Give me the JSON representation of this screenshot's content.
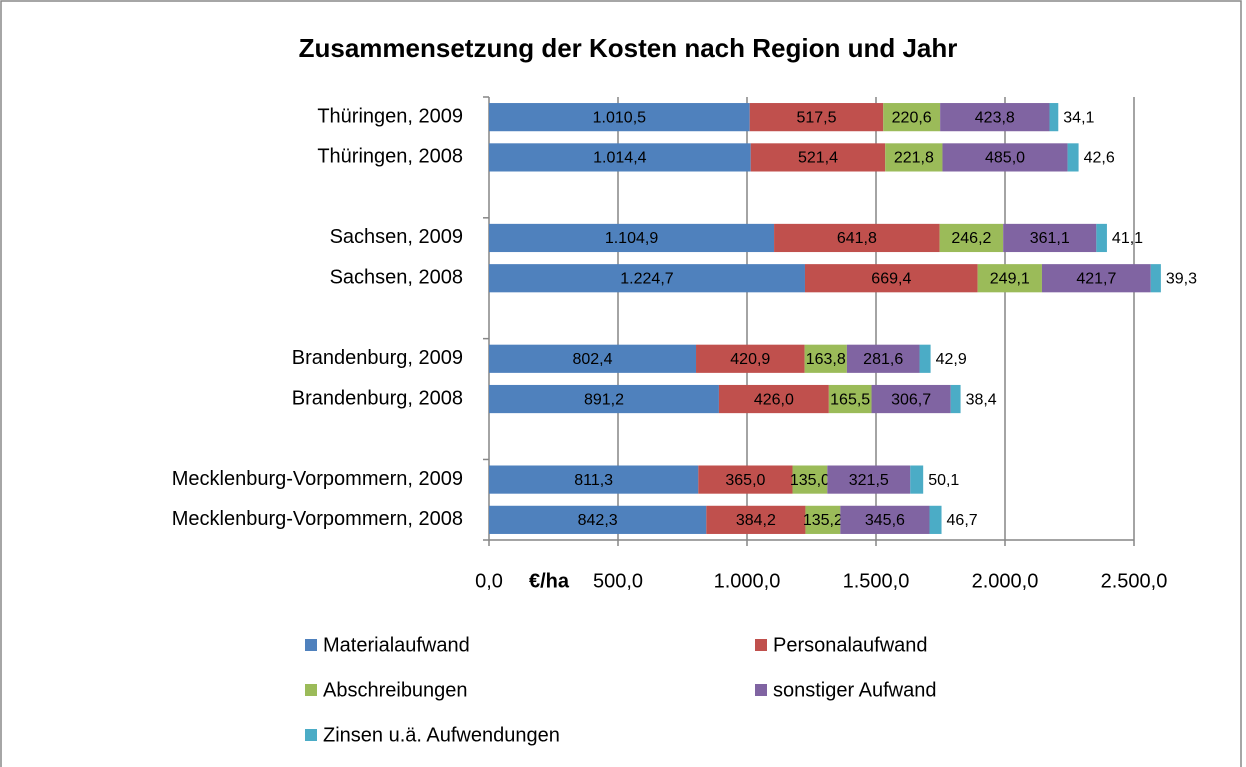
{
  "chart_data": {
    "type": "stacked-bar-horizontal",
    "title": "Zusammensetzung der Kosten nach Region und Jahr",
    "x_label": "€/ha",
    "categories": [
      "Thüringen, 2009",
      "Thüringen, 2008",
      null,
      "Sachsen, 2009",
      "Sachsen, 2008",
      null,
      "Brandenburg, 2009",
      "Brandenburg, 2008",
      null,
      "Mecklenburg-Vorpommern, 2009",
      "Mecklenburg-Vorpommern, 2008"
    ],
    "series": [
      {
        "name": "Materialaufwand",
        "color": "#4f81bd",
        "values": [
          1010.5,
          1014.4,
          null,
          1104.9,
          1224.7,
          null,
          802.4,
          891.2,
          null,
          811.3,
          842.3
        ],
        "value_labels": [
          "1.010,5",
          "1.014,4",
          null,
          "1.104,9",
          "1.224,7",
          null,
          "802,4",
          "891,2",
          null,
          "811,3",
          "842,3"
        ]
      },
      {
        "name": "Personalaufwand",
        "color": "#c0504d",
        "values": [
          517.5,
          521.4,
          null,
          641.8,
          669.4,
          null,
          420.9,
          426.0,
          null,
          365.0,
          384.2
        ],
        "value_labels": [
          "517,5",
          "521,4",
          null,
          "641,8",
          "669,4",
          null,
          "420,9",
          "426,0",
          null,
          "365,0",
          "384,2"
        ]
      },
      {
        "name": "Abschreibungen",
        "color": "#9bbb59",
        "values": [
          220.6,
          221.8,
          null,
          246.2,
          249.1,
          null,
          163.8,
          165.5,
          null,
          135.0,
          135.2
        ],
        "value_labels": [
          "220,6",
          "221,8",
          null,
          "246,2",
          "249,1",
          null,
          "163,8",
          "165,5",
          null,
          "135,0",
          "135,2"
        ]
      },
      {
        "name": "sonstiger Aufwand",
        "color": "#8064a2",
        "values": [
          423.8,
          485.0,
          null,
          361.1,
          421.7,
          null,
          281.6,
          306.7,
          null,
          321.5,
          345.6
        ],
        "value_labels": [
          "423,8",
          "485,0",
          null,
          "361,1",
          "421,7",
          null,
          "281,6",
          "306,7",
          null,
          "321,5",
          "345,6"
        ]
      },
      {
        "name": "Zinsen u.ä. Aufwendungen",
        "color": "#4bacc6",
        "values": [
          34.1,
          42.6,
          null,
          41.1,
          39.3,
          null,
          42.9,
          38.4,
          null,
          50.1,
          46.7
        ],
        "value_labels": [
          "34,1",
          "42,6",
          null,
          "41,1",
          "39,3",
          null,
          "42,9",
          "38,4",
          null,
          "50,1",
          "46,7"
        ]
      }
    ],
    "xlim": [
      0,
      2500
    ],
    "xticks": [
      {
        "value": 0,
        "label": "0,0"
      },
      {
        "value": 500,
        "label": "500,0"
      },
      {
        "value": 1000,
        "label": "1.000,0"
      },
      {
        "value": 1500,
        "label": "1.500,0"
      },
      {
        "value": 2000,
        "label": "2.000,0"
      },
      {
        "value": 2500,
        "label": "2.500,0"
      }
    ],
    "grid": true,
    "legend": "bottom"
  }
}
